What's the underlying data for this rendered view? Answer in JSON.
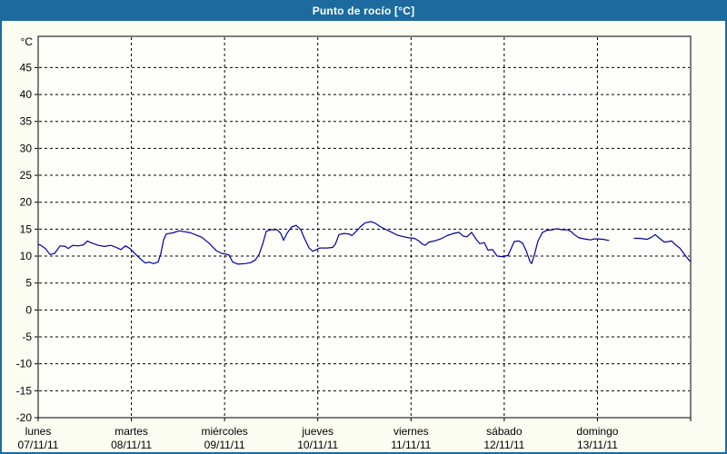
{
  "window": {
    "title": "Punto de rocío [°C]"
  },
  "colors": {
    "titlebar_bg": "#1d6b9e",
    "titlebar_text": "#ffffff",
    "page_bg": "#fbfdf2",
    "plot_bg": "#fefefa",
    "axis": "#000000",
    "grid": "#000000",
    "label_text": "#000000",
    "series": "#0000a0"
  },
  "chart_data": {
    "type": "line",
    "title": "Punto de rocío [°C]",
    "ylabel": "°C",
    "grid": "dashed",
    "legend_position": "none",
    "y_axis": {
      "unit_label": "°C",
      "min": -20,
      "max": 50.8,
      "tick_interval": 5,
      "ticks": [
        45,
        40,
        35,
        30,
        25,
        20,
        15,
        10,
        5,
        0,
        -5,
        -10,
        -15,
        -20
      ]
    },
    "x_axis": {
      "range_days": [
        0,
        7
      ],
      "days": [
        {
          "name": "lunes",
          "date": "07/11/11"
        },
        {
          "name": "martes",
          "date": "08/11/11"
        },
        {
          "name": "miércoles",
          "date": "09/11/11"
        },
        {
          "name": "jueves",
          "date": "10/11/11"
        },
        {
          "name": "viernes",
          "date": "11/11/11"
        },
        {
          "name": "sábado",
          "date": "12/11/11"
        },
        {
          "name": "domingo",
          "date": "13/11/11"
        }
      ]
    },
    "series": [
      {
        "name": "Punto de rocío",
        "color": "#0000a0",
        "segments": [
          [
            [
              0.0,
              12.2
            ],
            [
              0.029,
              12.0
            ],
            [
              0.078,
              11.4
            ],
            [
              0.127,
              10.3
            ],
            [
              0.176,
              10.5
            ],
            [
              0.234,
              11.9
            ],
            [
              0.292,
              11.8
            ],
            [
              0.322,
              11.4
            ],
            [
              0.37,
              12.0
            ],
            [
              0.429,
              11.9
            ],
            [
              0.487,
              12.1
            ],
            [
              0.527,
              12.8
            ],
            [
              0.565,
              12.5
            ],
            [
              0.643,
              12.0
            ],
            [
              0.712,
              11.8
            ],
            [
              0.78,
              12.0
            ],
            [
              0.838,
              11.6
            ],
            [
              0.887,
              11.2
            ],
            [
              0.936,
              11.9
            ],
            [
              0.985,
              11.4
            ],
            [
              1.053,
              10.2
            ],
            [
              1.102,
              9.4
            ],
            [
              1.15,
              8.7
            ],
            [
              1.189,
              8.9
            ],
            [
              1.238,
              8.6
            ],
            [
              1.287,
              8.9
            ],
            [
              1.316,
              10.5
            ],
            [
              1.345,
              13.0
            ],
            [
              1.375,
              14.1
            ],
            [
              1.443,
              14.3
            ],
            [
              1.511,
              14.7
            ],
            [
              1.579,
              14.5
            ],
            [
              1.638,
              14.3
            ],
            [
              1.696,
              13.9
            ],
            [
              1.755,
              13.5
            ],
            [
              1.833,
              12.4
            ],
            [
              1.911,
              11.0
            ],
            [
              1.969,
              10.5
            ],
            [
              2.008,
              10.4
            ],
            [
              2.047,
              10.2
            ],
            [
              2.086,
              8.9
            ],
            [
              2.145,
              8.5
            ],
            [
              2.223,
              8.6
            ],
            [
              2.281,
              8.8
            ],
            [
              2.33,
              9.3
            ],
            [
              2.369,
              10.3
            ],
            [
              2.408,
              12.2
            ],
            [
              2.447,
              14.6
            ],
            [
              2.496,
              14.9
            ],
            [
              2.564,
              14.9
            ],
            [
              2.603,
              14.2
            ],
            [
              2.632,
              12.9
            ],
            [
              2.671,
              14.3
            ],
            [
              2.72,
              15.4
            ],
            [
              2.769,
              15.7
            ],
            [
              2.818,
              14.9
            ],
            [
              2.857,
              13.3
            ],
            [
              2.906,
              11.5
            ],
            [
              2.945,
              10.9
            ],
            [
              2.984,
              11.2
            ],
            [
              3.023,
              11.5
            ],
            [
              3.101,
              11.5
            ],
            [
              3.159,
              11.6
            ],
            [
              3.188,
              12.2
            ],
            [
              3.227,
              14.0
            ],
            [
              3.286,
              14.2
            ],
            [
              3.335,
              14.1
            ],
            [
              3.364,
              13.8
            ],
            [
              3.413,
              14.6
            ],
            [
              3.461,
              15.5
            ],
            [
              3.51,
              16.2
            ],
            [
              3.569,
              16.4
            ],
            [
              3.617,
              16.1
            ],
            [
              3.666,
              15.5
            ],
            [
              3.724,
              15.0
            ],
            [
              3.783,
              14.5
            ],
            [
              3.851,
              13.9
            ],
            [
              3.919,
              13.6
            ],
            [
              3.978,
              13.4
            ],
            [
              4.036,
              13.3
            ],
            [
              4.085,
              12.8
            ],
            [
              4.124,
              12.2
            ],
            [
              4.153,
              12.0
            ],
            [
              4.192,
              12.6
            ],
            [
              4.25,
              12.8
            ],
            [
              4.319,
              13.2
            ],
            [
              4.387,
              13.8
            ],
            [
              4.455,
              14.2
            ],
            [
              4.514,
              14.4
            ],
            [
              4.562,
              13.7
            ],
            [
              4.601,
              13.6
            ],
            [
              4.65,
              14.4
            ],
            [
              4.699,
              13.1
            ],
            [
              4.738,
              12.3
            ],
            [
              4.787,
              12.5
            ],
            [
              4.826,
              11.1
            ],
            [
              4.875,
              11.2
            ],
            [
              4.923,
              10.0
            ],
            [
              4.982,
              9.9
            ],
            [
              5.04,
              10.1
            ],
            [
              5.079,
              11.6
            ],
            [
              5.108,
              12.7
            ],
            [
              5.157,
              12.8
            ],
            [
              5.196,
              12.4
            ],
            [
              5.235,
              11.0
            ],
            [
              5.274,
              9.1
            ],
            [
              5.294,
              8.6
            ],
            [
              5.323,
              10.2
            ],
            [
              5.362,
              12.8
            ],
            [
              5.411,
              14.4
            ],
            [
              5.46,
              14.8
            ],
            [
              5.518,
              14.9
            ],
            [
              5.567,
              15.1
            ],
            [
              5.616,
              14.9
            ],
            [
              5.674,
              14.9
            ],
            [
              5.713,
              14.6
            ],
            [
              5.752,
              14.0
            ],
            [
              5.801,
              13.4
            ],
            [
              5.859,
              13.2
            ],
            [
              5.928,
              13.0
            ],
            [
              5.966,
              13.2
            ],
            [
              6.005,
              13.2
            ],
            [
              6.064,
              13.1
            ],
            [
              6.122,
              12.9
            ]
          ],
          [
            [
              6.395,
              13.3
            ],
            [
              6.454,
              13.3
            ],
            [
              6.502,
              13.2
            ],
            [
              6.532,
              13.1
            ],
            [
              6.58,
              13.5
            ],
            [
              6.619,
              14.0
            ],
            [
              6.668,
              13.3
            ],
            [
              6.717,
              12.6
            ],
            [
              6.766,
              12.7
            ],
            [
              6.795,
              12.8
            ],
            [
              6.844,
              12.0
            ],
            [
              6.883,
              11.5
            ],
            [
              6.922,
              10.6
            ],
            [
              6.961,
              9.7
            ],
            [
              6.99,
              9.1
            ]
          ]
        ]
      }
    ]
  }
}
